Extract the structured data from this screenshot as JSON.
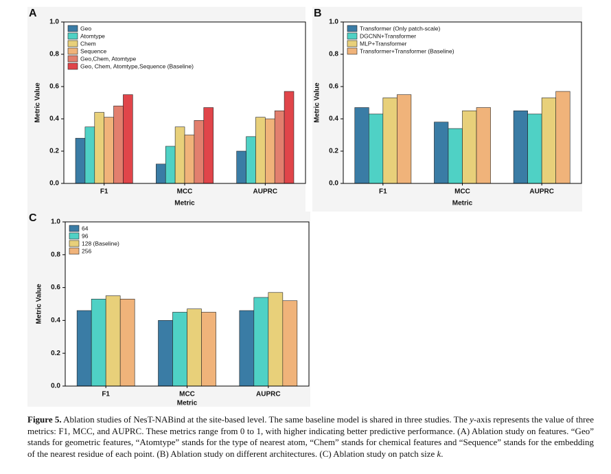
{
  "chart_data": [
    {
      "type": "bar",
      "panel_label": "A",
      "ylabel": "Metric Value",
      "xlabel": "Metric",
      "categories": [
        "F1",
        "MCC",
        "AUPRC"
      ],
      "ylim": [
        0,
        1
      ],
      "yticks": [
        {
          "value": 0,
          "label": "0.0"
        },
        0.2,
        0.4,
        0.6,
        0.8,
        {
          "value": 1,
          "label": "1.0"
        }
      ],
      "legend": "upper left",
      "series": [
        {
          "name": "Geo",
          "color": "#3a7ca5",
          "values": [
            0.28,
            0.12,
            0.2
          ]
        },
        {
          "name": "Atomtype",
          "color": "#4fd1c5",
          "values": [
            0.35,
            0.23,
            0.29
          ]
        },
        {
          "name": "Chem",
          "color": "#e8d07a",
          "values": [
            0.44,
            0.35,
            0.41
          ]
        },
        {
          "name": "Sequence",
          "color": "#f0b37a",
          "values": [
            0.41,
            0.3,
            0.4
          ]
        },
        {
          "name": "Geo,Chem, Atomtype",
          "color": "#e27f6e",
          "values": [
            0.48,
            0.39,
            0.45
          ]
        },
        {
          "name": "Geo, Chem, Atomtype,Sequence (Baseline)",
          "color": "#e0454a",
          "values": [
            0.55,
            0.47,
            0.57
          ]
        }
      ]
    },
    {
      "type": "bar",
      "panel_label": "B",
      "ylabel": "Metric Value",
      "xlabel": "Metric",
      "categories": [
        "F1",
        "MCC",
        "AUPRC"
      ],
      "ylim": [
        0,
        1
      ],
      "yticks": [
        {
          "value": 0,
          "label": "0.0"
        },
        0.2,
        0.4,
        0.6,
        0.8,
        {
          "value": 1,
          "label": "1.0"
        }
      ],
      "legend": "upper left",
      "series": [
        {
          "name": "Transformer (Only patch-scale)",
          "color": "#3a7ca5",
          "values": [
            0.47,
            0.38,
            0.45
          ]
        },
        {
          "name": "DGCNN+Transformer",
          "color": "#4fd1c5",
          "values": [
            0.43,
            0.34,
            0.43
          ]
        },
        {
          "name": "MLP+Transformer",
          "color": "#e8d07a",
          "values": [
            0.53,
            0.45,
            0.53
          ]
        },
        {
          "name": "Transformer+Transformer (Baseline)",
          "color": "#f0b37a",
          "values": [
            0.55,
            0.47,
            0.57
          ]
        }
      ]
    },
    {
      "type": "bar",
      "panel_label": "C",
      "ylabel": "Metric Value",
      "xlabel": "Metric",
      "categories": [
        "F1",
        "MCC",
        "AUPRC"
      ],
      "ylim": [
        0,
        1
      ],
      "yticks": [
        {
          "value": 0,
          "label": "0.0"
        },
        0.2,
        0.4,
        0.6,
        0.8,
        {
          "value": 1,
          "label": "1.0"
        }
      ],
      "legend": "upper left",
      "series": [
        {
          "name": "64",
          "color": "#3a7ca5",
          "values": [
            0.46,
            0.4,
            0.46
          ]
        },
        {
          "name": "96",
          "color": "#4fd1c5",
          "values": [
            0.53,
            0.45,
            0.54
          ]
        },
        {
          "name": "128 (Baseline)",
          "color": "#e8d07a",
          "values": [
            0.55,
            0.47,
            0.57
          ]
        },
        {
          "name": "256",
          "color": "#f0b37a",
          "values": [
            0.53,
            0.45,
            0.52
          ]
        }
      ]
    }
  ],
  "caption": {
    "label": "Figure 5.",
    "parts": [
      "Ablation studies of NesT-NABind at the site-based level. The same baseline model is shared in three studies. The ",
      "y",
      "-axis represents the value of three metrics: F1, MCC, and AUPRC. These metrics range from 0 to 1, with higher indicating better predictive performance. (A) Ablation study on features. “Geo” stands for geometric features, “Atomtype” stands for the type of nearest atom, “Chem” stands for chemical features and “Sequence” stands for the embedding of the nearest residue of each point. (B) Ablation study on different architectures. (C) Ablation study on patch size ",
      "k",
      "."
    ]
  }
}
